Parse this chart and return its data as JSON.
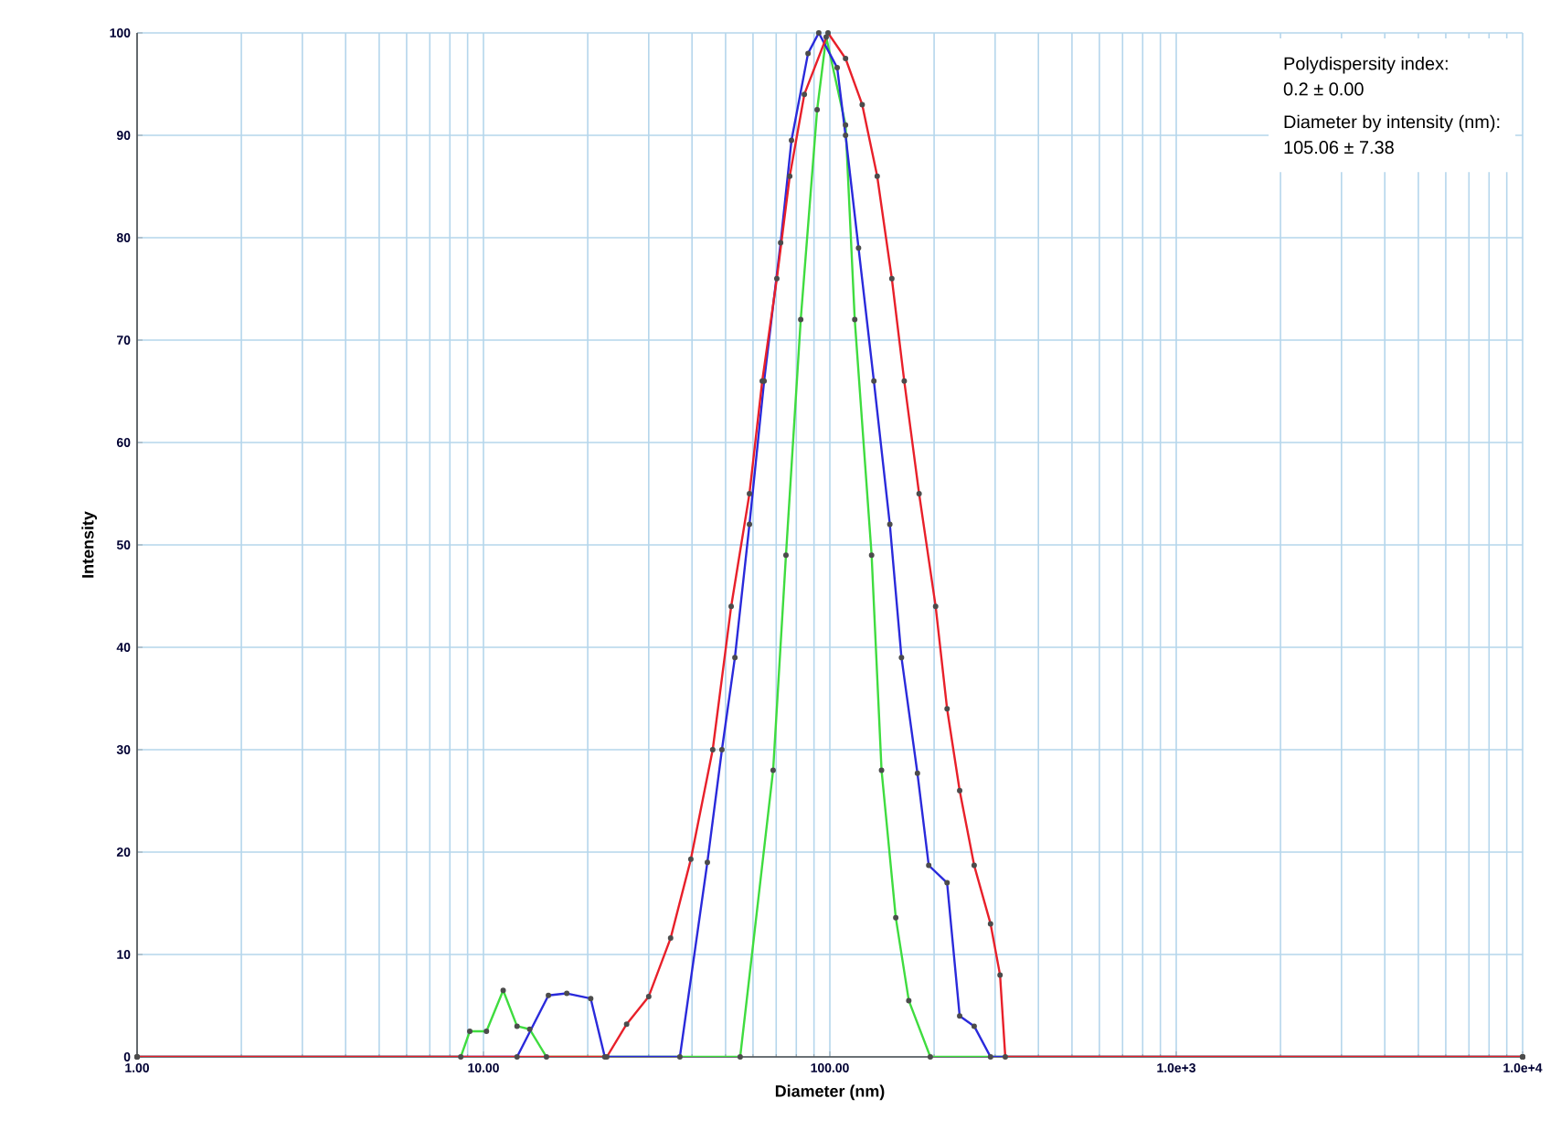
{
  "chart_data": {
    "type": "line",
    "xlabel": "Diameter (nm)",
    "ylabel": "Intensity",
    "log": "x",
    "xlim": [
      1,
      10000
    ],
    "ylim": [
      0,
      100
    ],
    "xticks": [
      {
        "value": 1,
        "label": "1.00"
      },
      {
        "value": 10,
        "label": "10.00"
      },
      {
        "value": 100,
        "label": "100.00"
      },
      {
        "value": 1000,
        "label": "1.0e+3"
      },
      {
        "value": 10000,
        "label": "1.0e+4"
      }
    ],
    "yticks": [
      0,
      10,
      20,
      30,
      40,
      50,
      60,
      70,
      80,
      90,
      100
    ],
    "grid": true,
    "marker": "circle",
    "line_style": "solid",
    "annotations": [
      "Polydispersity index:",
      "0.2 ± 0.00",
      "Diameter by intensity (nm):",
      "105.06 ± 7.38"
    ],
    "series": [
      {
        "color": "#3fdc3f",
        "x": [
          1,
          8.6,
          9.13,
          10.2,
          11.4,
          12.5,
          13.6,
          15.2,
          55.1,
          68.6,
          74.7,
          82.4,
          91.9,
          97.6,
          111,
          118,
          132,
          141,
          155,
          169,
          195,
          10000
        ],
        "values": [
          0,
          0,
          2.5,
          2.5,
          6.5,
          3,
          2.7,
          0,
          0,
          28,
          49,
          72,
          92.5,
          99.6,
          91,
          72,
          49,
          28,
          13.6,
          5.5,
          0,
          0
        ]
      },
      {
        "color": "#2a2adb",
        "x": [
          1,
          12.5,
          15.4,
          17.4,
          20.4,
          22.4,
          36.9,
          44.3,
          48.8,
          53.2,
          58.6,
          64.6,
          72.1,
          77.5,
          86.5,
          92.9,
          105,
          111,
          121,
          134,
          149,
          161,
          179,
          193,
          218,
          237,
          261,
          291,
          10000
        ],
        "values": [
          0,
          0,
          6,
          6.2,
          5.7,
          0,
          0,
          19,
          30,
          39,
          52,
          66,
          79.5,
          89.5,
          98,
          100,
          96.6,
          90,
          79,
          66,
          52,
          39,
          27.7,
          18.7,
          17,
          4,
          3,
          0,
          0
        ]
      },
      {
        "color": "#e8202a",
        "x": [
          1,
          22.7,
          25.9,
          30.0,
          34.7,
          39.7,
          45.9,
          51.9,
          58.6,
          63.8,
          70.3,
          76.6,
          84.4,
          98.8,
          111,
          124,
          137,
          151,
          164,
          181,
          202,
          218,
          237,
          261,
          291,
          310,
          321,
          10000
        ],
        "values": [
          0,
          0,
          3.2,
          5.9,
          11.6,
          19.3,
          30,
          44,
          55,
          66,
          76,
          86,
          94,
          100,
          97.5,
          93,
          86,
          76,
          66,
          55,
          44,
          34,
          26,
          18.7,
          13,
          8,
          0,
          0
        ]
      }
    ]
  }
}
